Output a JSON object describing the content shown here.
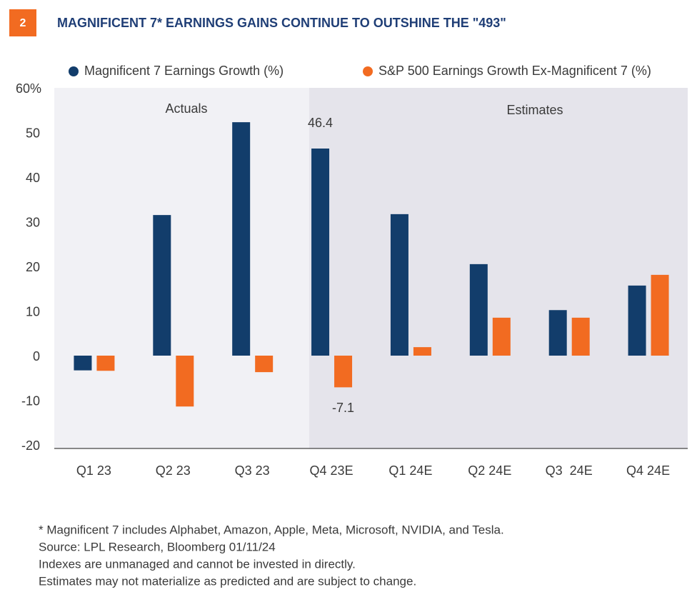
{
  "chart_data": {
    "type": "bar",
    "badge": "2",
    "title": "MAGNIFICENT 7* EARNINGS GAINS CONTINUE TO OUTSHINE THE \"493\"",
    "annotations": [
      "Actuals",
      "Estimates"
    ],
    "categories": [
      "Q1 23",
      "Q2 23",
      "Q3 23",
      "Q4 23E",
      "Q1 24E",
      "Q2 24E",
      "Q3  24E",
      "Q4 24E"
    ],
    "series": [
      {
        "name": "Magnificent 7 Earnings Growth (%)",
        "color": "#123d6b",
        "values": [
          -3.3,
          31.5,
          52.3,
          46.4,
          31.7,
          20.5,
          10.2,
          15.7
        ]
      },
      {
        "name": "S&P 500 Earnings Growth Ex-Magnificent 7 (%)",
        "color": "#f26b21",
        "values": [
          -3.4,
          -11.4,
          -3.7,
          -7.1,
          1.9,
          8.5,
          8.5,
          18.1
        ]
      }
    ],
    "labeled_index": 3,
    "ylim": [
      -20,
      60
    ],
    "yticks": [
      -20,
      -10,
      0,
      10,
      20,
      30,
      40,
      50,
      {
        "value": 60,
        "label": "60%"
      }
    ],
    "notes": [
      "* Magnificent 7 includes Alphabet, Amazon, Apple, Meta, Microsoft, NVIDIA, and Tesla.",
      "Source: LPL Research, Bloomberg 01/11/24",
      "Indexes are unmanaged and cannot be invested in directly.",
      "Estimates may not materialize as predicted and are subject to change."
    ]
  }
}
